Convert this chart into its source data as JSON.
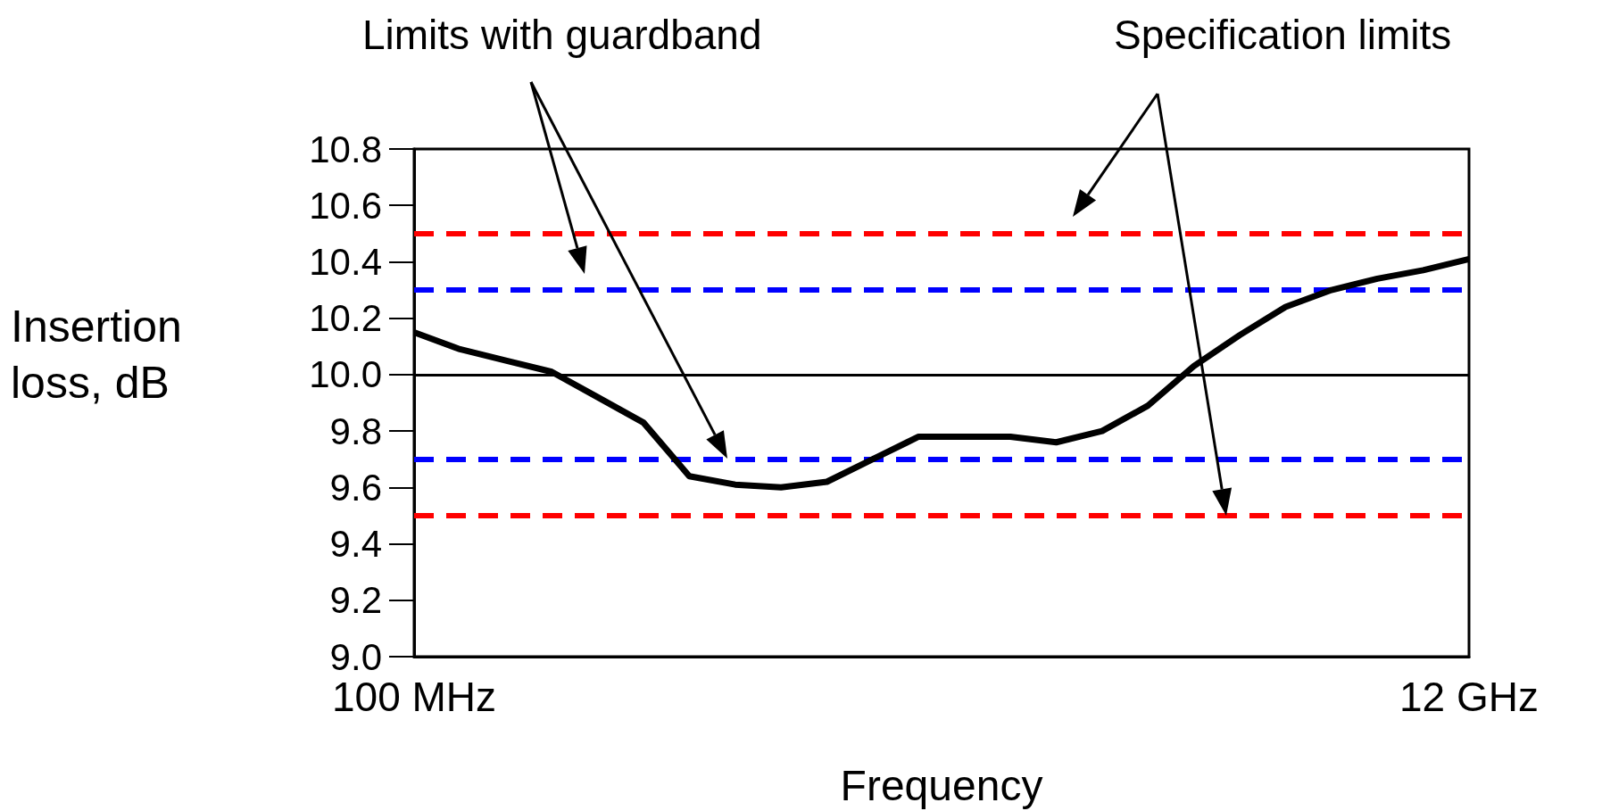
{
  "chart_data": {
    "type": "line",
    "xlabel": "Frequency",
    "ylabel": "Insertion loss, dB",
    "annotations": [
      "Limits with guardband",
      "Specification limits"
    ],
    "categories": [
      "100 MHz",
      null,
      null,
      null,
      null,
      null,
      null,
      null,
      null,
      null,
      null,
      null,
      null,
      null,
      null,
      null,
      null,
      null,
      null,
      null,
      null,
      null,
      null,
      "12 GHz"
    ],
    "series": [
      {
        "color": "#000000",
        "values": [
          10.15,
          10.09,
          10.05,
          10.01,
          9.92,
          9.83,
          9.64,
          9.61,
          9.6,
          9.62,
          9.7,
          9.78,
          9.78,
          9.78,
          9.76,
          9.8,
          9.89,
          10.03,
          10.14,
          10.24,
          10.3,
          10.34,
          10.37,
          10.41
        ]
      }
    ],
    "ylim": [
      9.0,
      10.8
    ],
    "yticks": [
      {
        "value": 9.0,
        "label": "9.0"
      },
      9.2,
      9.4,
      9.6,
      9.8,
      {
        "value": 10.0,
        "label": "10.0"
      },
      10.2,
      10.4,
      10.6,
      10.8
    ],
    "ref_lines": [
      {
        "axis": "y",
        "value": 10.5,
        "color": "#ff0000",
        "line_style": "dashed"
      },
      {
        "axis": "y",
        "value": 9.5,
        "color": "#ff0000",
        "line_style": "dashed"
      },
      {
        "axis": "y",
        "value": 10.3,
        "color": "#0000ff",
        "line_style": "dashed"
      },
      {
        "axis": "y",
        "value": 9.7,
        "color": "#0000ff",
        "line_style": "dashed"
      },
      {
        "axis": "y",
        "value": 10.0,
        "color": "#000000",
        "line_style": "solid"
      }
    ],
    "grid": false,
    "marker": "none",
    "line_style": "solid"
  }
}
